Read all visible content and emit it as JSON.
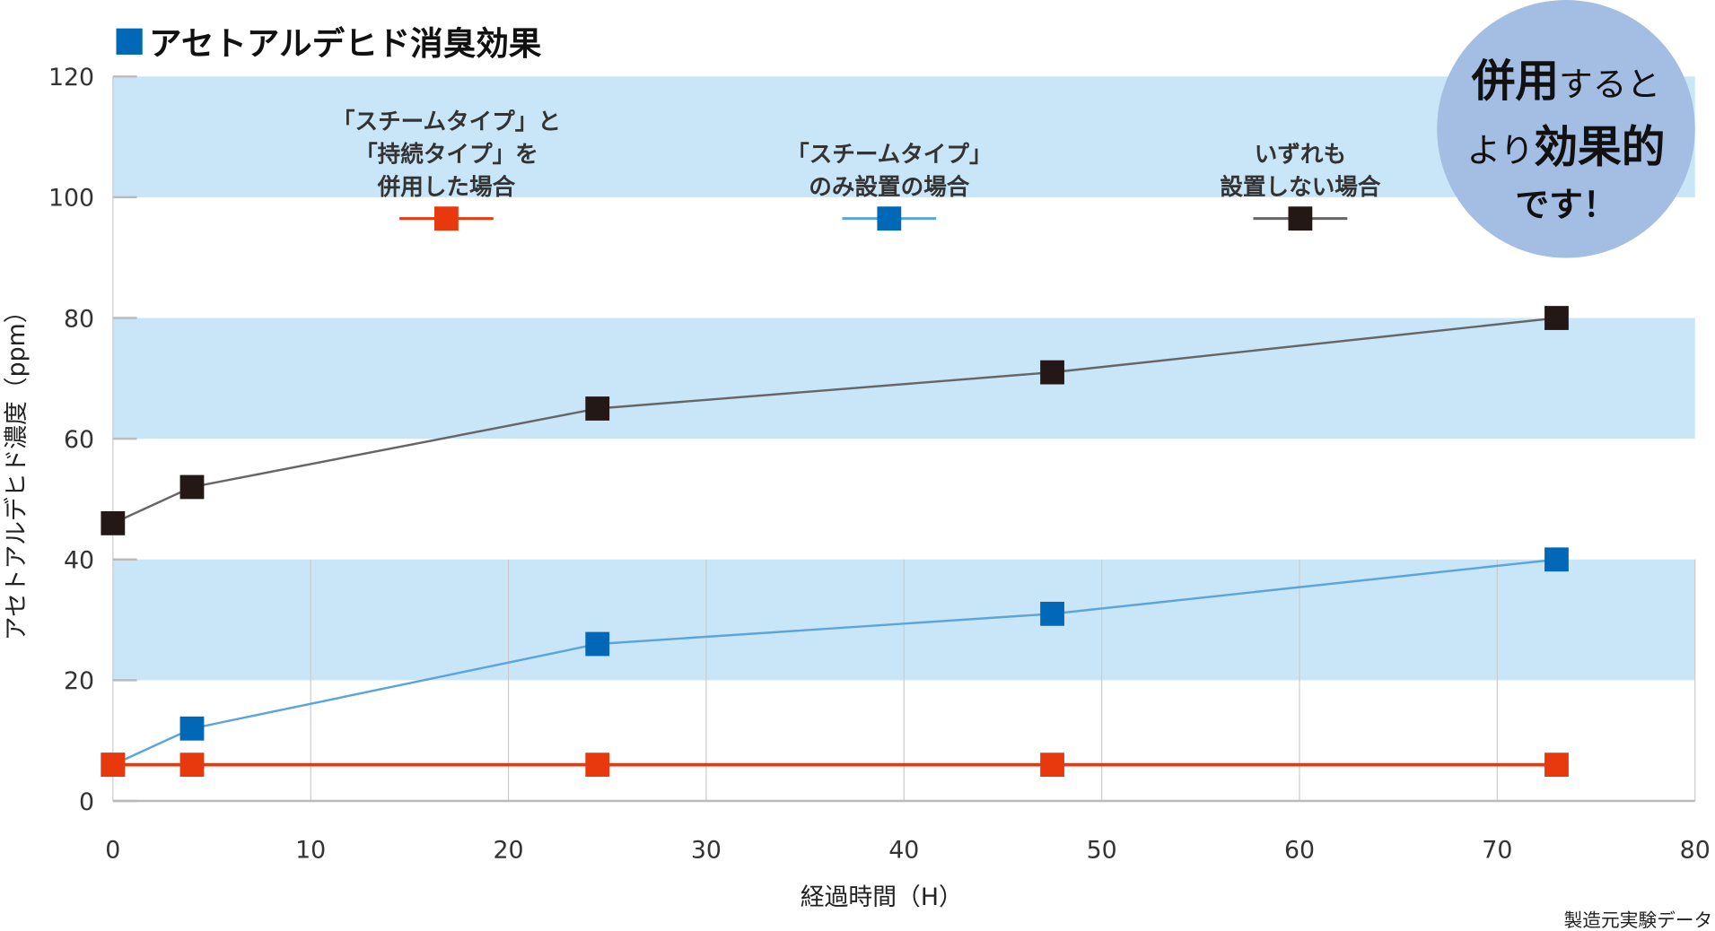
{
  "chart_data": {
    "type": "line",
    "title": "アセトアルデヒド消臭効果",
    "xlabel": "経過時間（H）",
    "ylabel": "アセトアルデヒド濃度（ppm）",
    "xlim": [
      0,
      80
    ],
    "ylim": [
      0,
      120
    ],
    "xticks": [
      "0",
      "10",
      "20",
      "30",
      "40",
      "50",
      "60",
      "70",
      "80"
    ],
    "yticks": [
      "0",
      "20",
      "40",
      "60",
      "80",
      "100",
      "120"
    ],
    "grid": "alternating horizontal bands (light blue) with vertical grid lines",
    "x": [
      0,
      4,
      24.5,
      47.5,
      73
    ],
    "series": [
      {
        "name": "「スチームタイプ」と「持続タイプ」を併用した場合",
        "legend_lines": [
          "「スチームタイプ」と",
          "「持続タイプ」を",
          "併用した場合"
        ],
        "color": "#e8380d",
        "values": [
          6,
          6,
          6,
          6,
          6
        ]
      },
      {
        "name": "「スチームタイプ」のみ設置の場合",
        "legend_lines": [
          "「スチームタイプ」",
          "のみ設置の場合"
        ],
        "color": "#0068b7",
        "line_color": "#5ba4dc",
        "values": [
          6,
          12,
          26,
          31,
          40
        ]
      },
      {
        "name": "いずれも設置しない場合",
        "legend_lines": [
          "いずれも",
          "設置しない場合"
        ],
        "color": "#231815",
        "line_color": "#666666",
        "values": [
          46,
          52,
          65,
          71,
          80
        ]
      }
    ],
    "legend_placement": "top",
    "annotation": {
      "lines_bold_parts": [
        [
          "併用",
          "すると"
        ],
        [
          "より",
          "効果的"
        ],
        [
          "です！"
        ]
      ],
      "bubble_color": "#a3bde3"
    },
    "footnote": "製造元実験データ",
    "title_marker_color": "#0068b7",
    "band_color": "#c9e6f8"
  }
}
